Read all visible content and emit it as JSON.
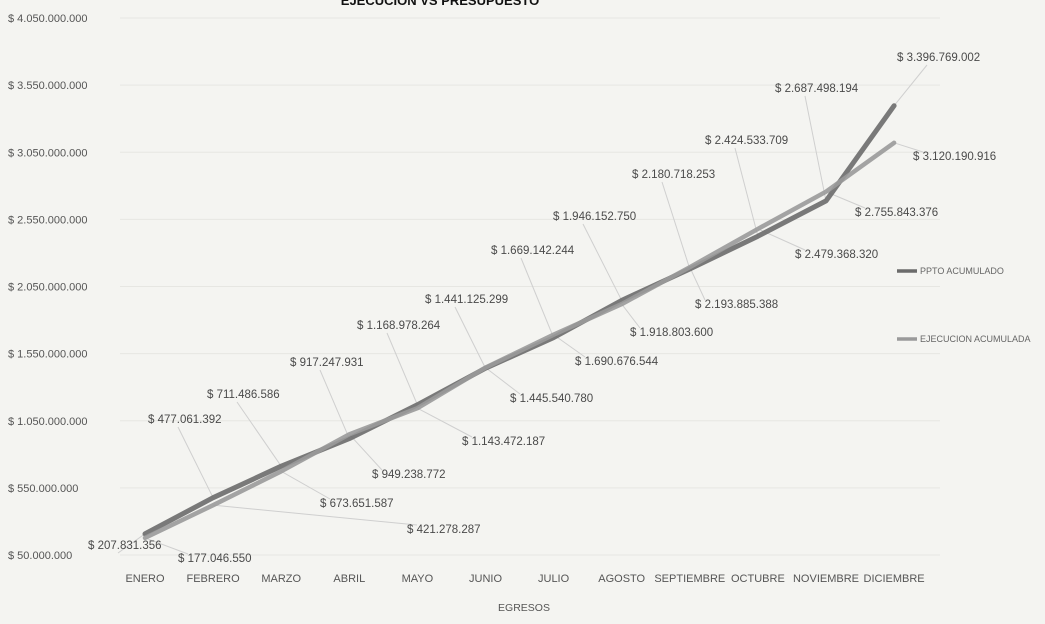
{
  "chart_data": {
    "type": "line",
    "title": "EJECUCION VS PRESUPUESTO",
    "xlabel": "EGRESOS",
    "ylabel": "",
    "categories": [
      "ENERO",
      "FEBRERO",
      "MARZO",
      "ABRIL",
      "MAYO",
      "JUNIO",
      "JULIO",
      "AGOSTO",
      "SEPTIEMBRE",
      "OCTUBRE",
      "NOVIEMBRE",
      "DICIEMBRE"
    ],
    "y_ticks": [
      "$ 50.000.000",
      "$ 550.000.000",
      "$ 1.050.000.000",
      "$ 1.550.000.000",
      "$ 2.050.000.000",
      "$ 2.550.000.000",
      "$ 3.050.000.000",
      "$ 3.550.000.000",
      "$ 4.050.000.000"
    ],
    "ylim": [
      50000000,
      4050000000
    ],
    "grid": true,
    "legend_position": "right",
    "series": [
      {
        "name": "PPTO ACUMULADO",
        "color": "#6b6b6b",
        "values": [
          207831356,
          477061392,
          711486586,
          917247931,
          1168978264,
          1441125299,
          1669142244,
          1946152750,
          2180718253,
          2424533709,
          2687498194,
          3396769002
        ],
        "labels": [
          "$ 207.831.356",
          "$ 477.061.392",
          "$ 711.486.586",
          "$ 917.247.931",
          "$ 1.168.978.264",
          "$ 1.441.125.299",
          "$ 1.669.142.244",
          "$ 1.946.152.750",
          "$ 2.180.718.253",
          "$ 2.424.533.709",
          "$ 2.687.498.194",
          "$ 3.396.769.002"
        ]
      },
      {
        "name": "EJECUCION ACUMULADA",
        "color": "#9a9a9a",
        "values": [
          177046550,
          421278287,
          673651587,
          949238772,
          1143472187,
          1445540780,
          1690676544,
          1918803600,
          2193885388,
          2479368320,
          2755843376,
          3120190916
        ],
        "labels": [
          "$ 177.046.550",
          "$ 421.278.287",
          "$ 673.651.587",
          "$ 949.238.772",
          "$ 1.143.472.187",
          "$ 1.445.540.780",
          "$ 1.690.676.544",
          "$ 1.918.803.600",
          "$ 2.193.885.388",
          "$ 2.479.368.320",
          "$ 2.755.843.376",
          "$ 3.120.190.916"
        ]
      }
    ]
  }
}
